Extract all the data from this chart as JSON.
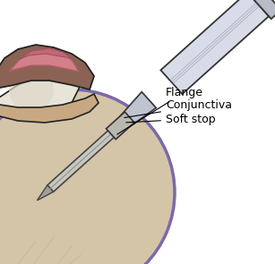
{
  "bg_color": "#f0f0f0",
  "eye_ball_color": "#d4c5a9",
  "eye_ball_outline": "#222222",
  "sclera_color": "#e8e0d0",
  "iris_color": "#6b4c3b",
  "eyelid_color": "#c8a882",
  "conjunctiva_color": "#c8b8a0",
  "label_soft_stop": "Soft stop",
  "label_conjunctiva": "Conjunctiva",
  "label_flange": "Flange",
  "label_fontsize": 9,
  "needle_color": "#b0b0b0",
  "needle_outline": "#333333",
  "syringe_color": "#d0d8e0",
  "syringe_outline": "#444444"
}
